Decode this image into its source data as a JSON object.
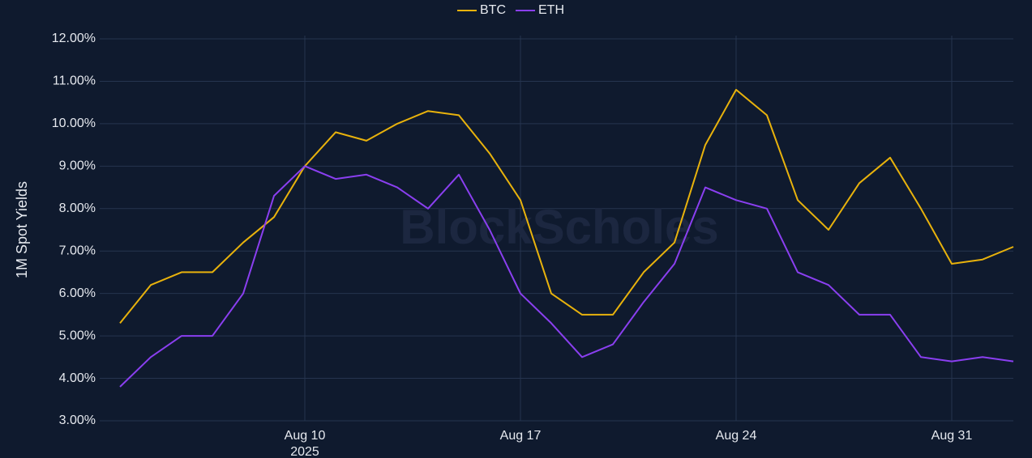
{
  "chart_data": {
    "type": "line",
    "y_label": "1M Spot Yields",
    "watermark": "BlockScholes",
    "x": [
      "2025-08-04",
      "2025-08-05",
      "2025-08-06",
      "2025-08-07",
      "2025-08-08",
      "2025-08-09",
      "2025-08-10",
      "2025-08-11",
      "2025-08-12",
      "2025-08-13",
      "2025-08-14",
      "2025-08-15",
      "2025-08-16",
      "2025-08-17",
      "2025-08-18",
      "2025-08-19",
      "2025-08-20",
      "2025-08-21",
      "2025-08-22",
      "2025-08-23",
      "2025-08-24",
      "2025-08-25",
      "2025-08-26",
      "2025-08-27",
      "2025-08-28",
      "2025-08-29",
      "2025-08-30",
      "2025-08-31",
      "2025-09-01",
      "2025-09-02"
    ],
    "series": [
      {
        "name": "BTC",
        "color": "#e8b20c",
        "values": [
          5.3,
          6.2,
          6.5,
          6.5,
          7.2,
          7.8,
          9.0,
          9.8,
          9.6,
          10.0,
          10.3,
          10.2,
          9.3,
          8.2,
          6.0,
          5.5,
          5.5,
          6.5,
          7.2,
          9.5,
          10.8,
          10.2,
          8.2,
          7.5,
          8.6,
          9.2,
          8.0,
          6.7,
          6.8,
          7.1
        ]
      },
      {
        "name": "ETH",
        "color": "#8a3ff0",
        "values": [
          3.8,
          4.5,
          5.0,
          5.0,
          6.0,
          8.3,
          9.0,
          8.7,
          8.8,
          8.5,
          8.0,
          8.8,
          7.5,
          6.0,
          5.3,
          4.5,
          4.8,
          5.8,
          6.7,
          8.5,
          8.2,
          8.0,
          6.5,
          6.2,
          5.5,
          5.5,
          4.5,
          4.4,
          4.5,
          4.4
        ]
      }
    ],
    "xlim": [
      "2025-08-03",
      "2025-09-02"
    ],
    "xticks": [
      {
        "value": "2025-08-10",
        "label": "Aug 10"
      },
      {
        "value": "2025-08-17",
        "label": "Aug 17"
      },
      {
        "value": "2025-08-24",
        "label": "Aug 24"
      },
      {
        "value": "2025-08-31",
        "label": "Aug 31"
      }
    ],
    "x_year_label": "2025",
    "ylim": [
      3,
      12
    ],
    "yticks": [
      {
        "value": 3,
        "label": "3.00%"
      },
      {
        "value": 4,
        "label": "4.00%"
      },
      {
        "value": 5,
        "label": "5.00%"
      },
      {
        "value": 6,
        "label": "6.00%"
      },
      {
        "value": 7,
        "label": "7.00%"
      },
      {
        "value": 8,
        "label": "8.00%"
      },
      {
        "value": 9,
        "label": "9.00%"
      },
      {
        "value": 10,
        "label": "10.00%"
      },
      {
        "value": 11,
        "label": "11.00%"
      },
      {
        "value": 12,
        "label": "12.00%"
      }
    ],
    "grid": true,
    "legend": "top"
  }
}
